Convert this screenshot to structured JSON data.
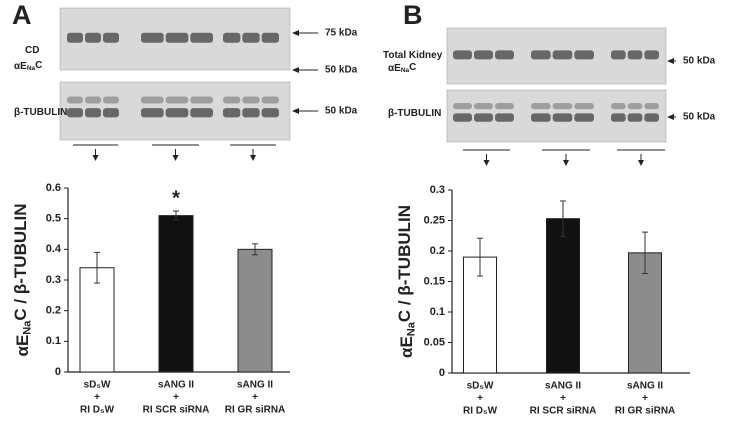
{
  "chart_data": [
    {
      "type": "bar",
      "panel": "A",
      "blots": [
        {
          "labels": [
            [
              "CD"
            ],
            [
              "αE",
              "Na",
              "C"
            ]
          ],
          "markers": [
            "75 kDa",
            "50 kDa"
          ]
        },
        {
          "labels": [
            [
              "β-TUBULIN"
            ]
          ],
          "markers": [
            "50 kDa"
          ]
        }
      ],
      "y_label": [
        "αE",
        "Na",
        "C / β-TUBULIN"
      ],
      "categories": [
        [
          "sD₅W",
          "+",
          "RI D₅W"
        ],
        [
          "sANG II",
          "+",
          "RI SCR siRNA"
        ],
        [
          "sANG II",
          "+",
          "RI GR siRNA"
        ]
      ],
      "values": [
        0.34,
        0.51,
        0.4
      ],
      "errors": [
        0.05,
        0.015,
        0.018
      ],
      "colors": [
        "#ffffff",
        "#111111",
        "#8c8c8c"
      ],
      "annotations": [
        {
          "text": "*",
          "category": 1
        }
      ],
      "ylim": [
        0,
        0.6
      ],
      "yticks": [
        0,
        0.1,
        0.2,
        0.3,
        0.4,
        0.5,
        0.6
      ]
    },
    {
      "type": "bar",
      "panel": "B",
      "blots": [
        {
          "labels": [
            [
              "Total Kidney"
            ],
            [
              "αE",
              "Na",
              "C"
            ]
          ],
          "markers": [
            "50 kDa"
          ]
        },
        {
          "labels": [
            [
              "β-TUBULIN"
            ]
          ],
          "markers": [
            "50 kDa"
          ]
        }
      ],
      "y_label": [
        "αE",
        "Na",
        "C / β-TUBULIN"
      ],
      "categories": [
        [
          "sD₅W",
          "+",
          "RI D₅W"
        ],
        [
          "sANG II",
          "+",
          "RI SCR siRNA"
        ],
        [
          "sANG II",
          "+",
          "RI GR siRNA"
        ]
      ],
      "values": [
        0.19,
        0.253,
        0.197
      ],
      "errors": [
        0.031,
        0.029,
        0.034
      ],
      "colors": [
        "#ffffff",
        "#111111",
        "#8c8c8c"
      ],
      "ylim": [
        0,
        0.3
      ],
      "yticks": [
        0,
        0.05,
        0.1,
        0.15,
        0.2,
        0.25,
        0.3
      ]
    }
  ]
}
